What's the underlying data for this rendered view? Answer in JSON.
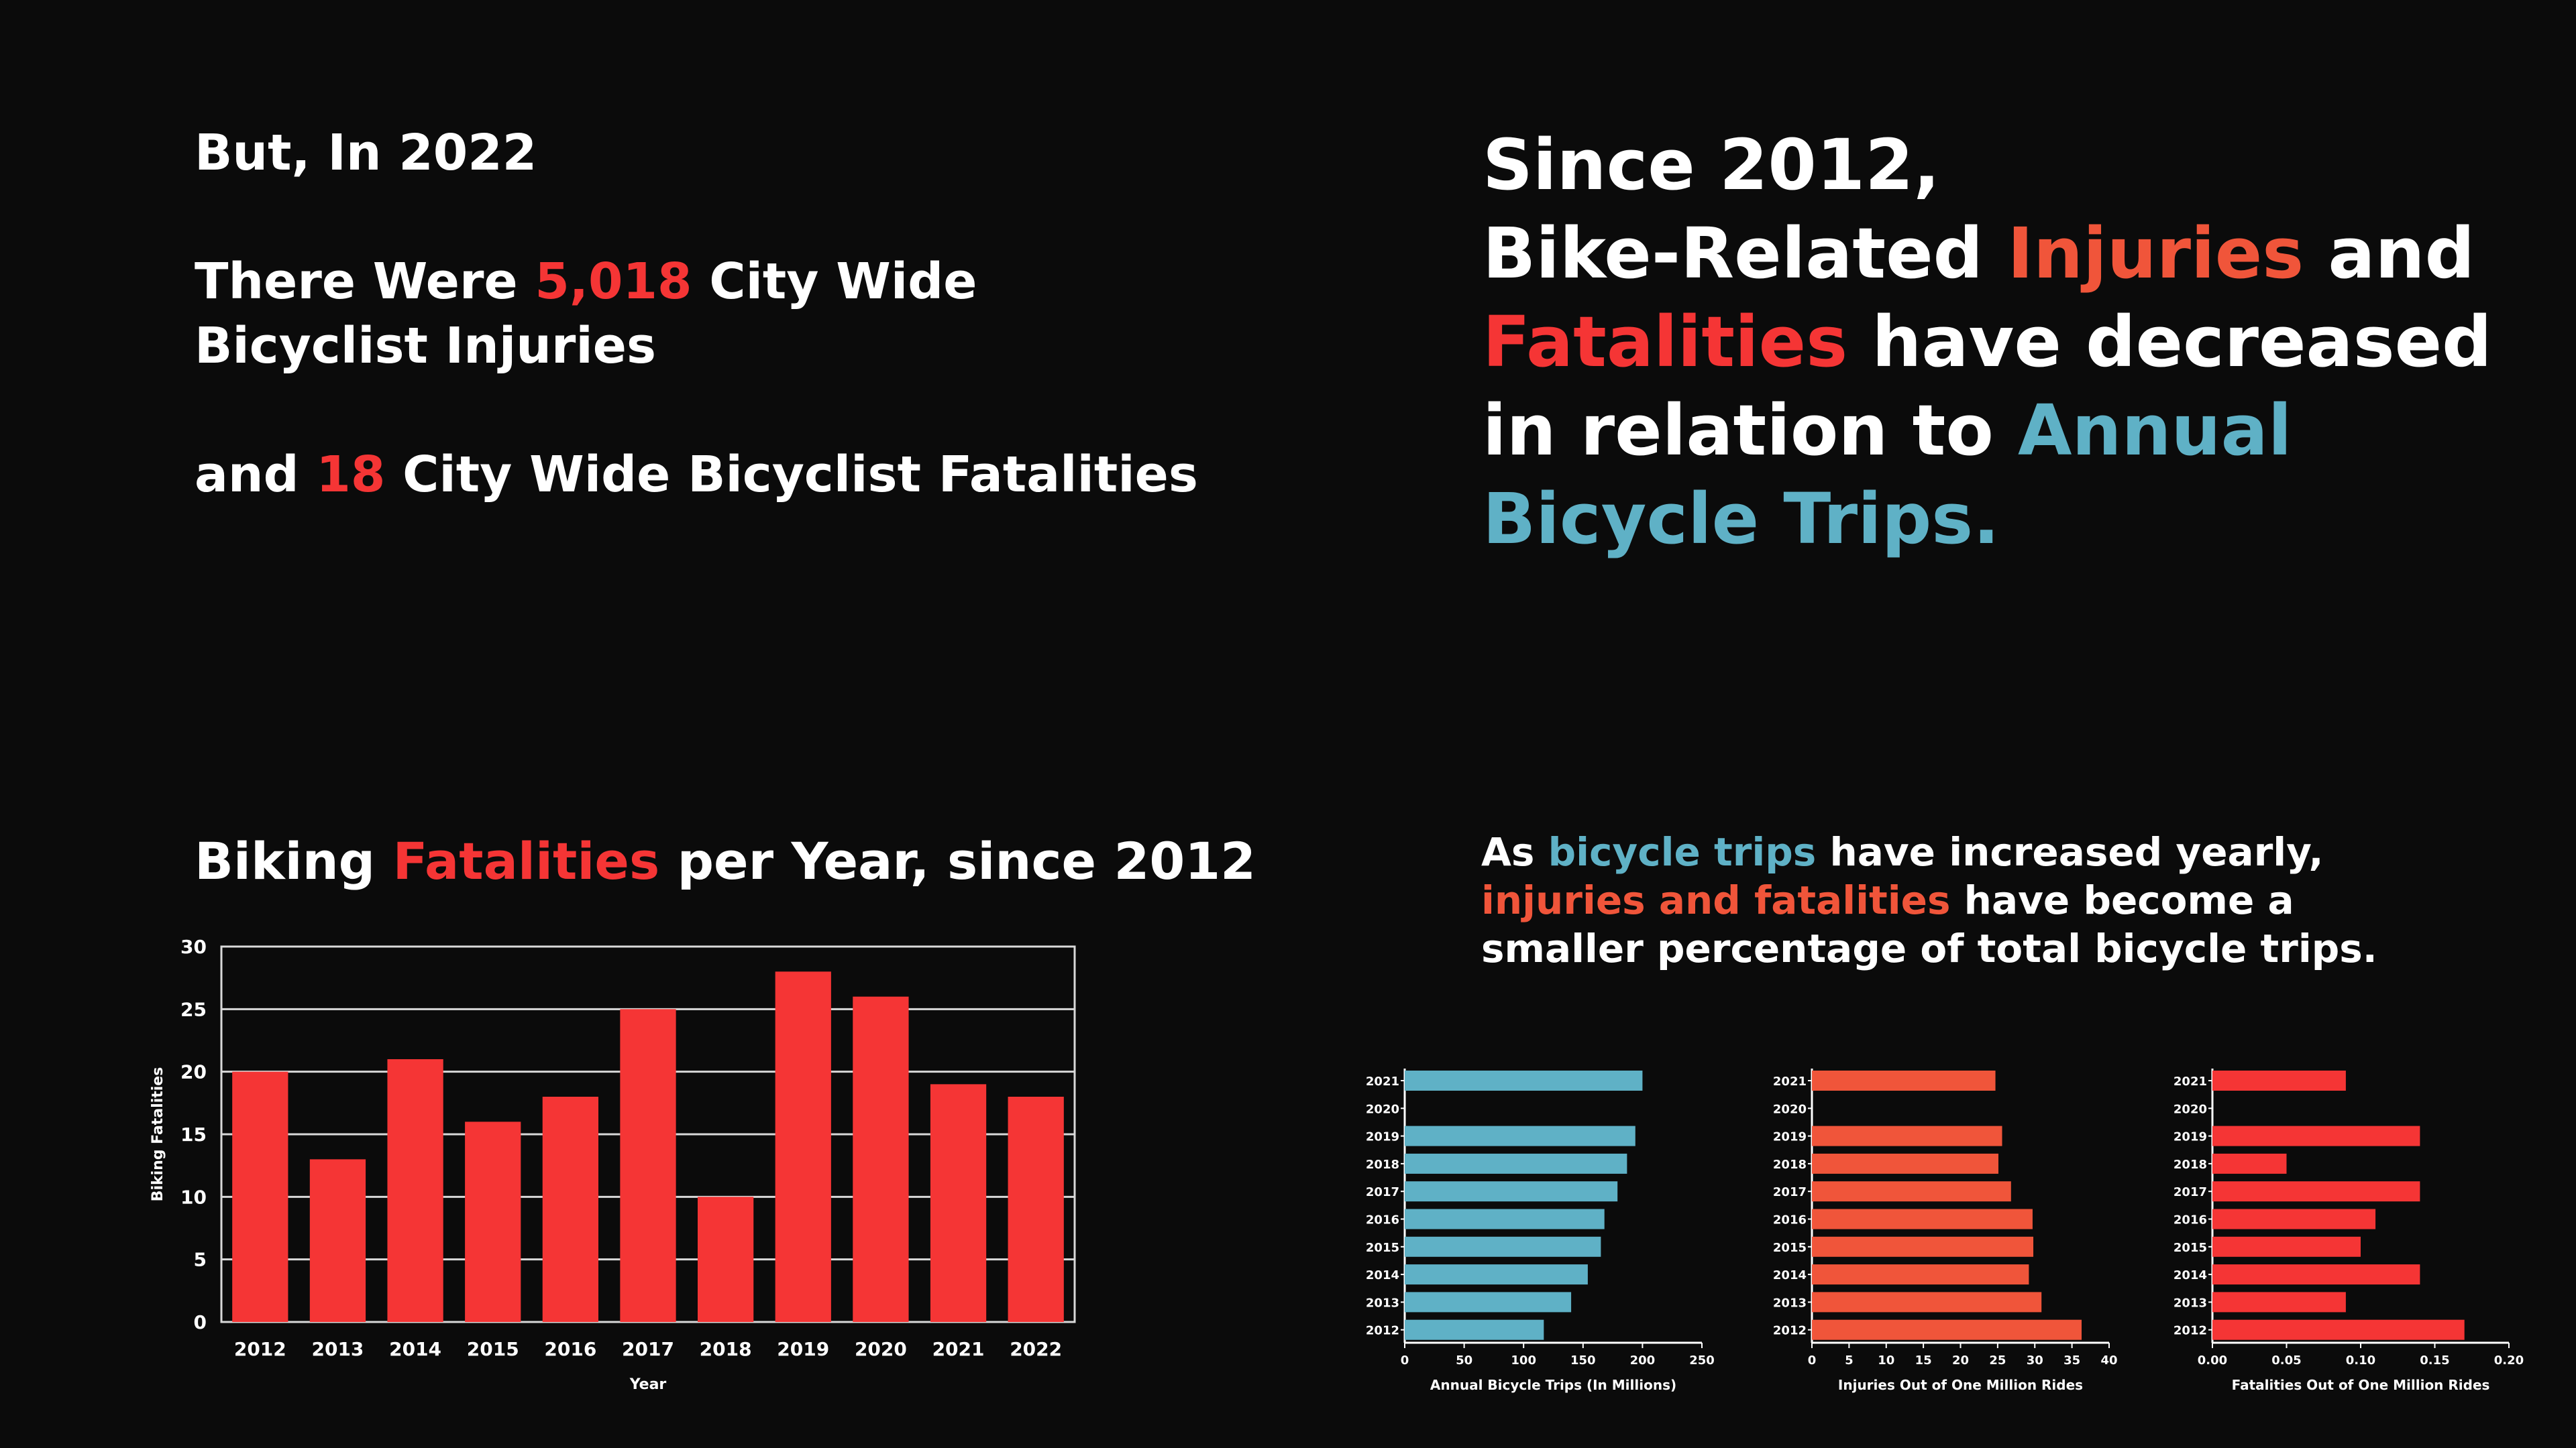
{
  "left_text": {
    "line1": "But, In 2022",
    "inj_pre": "There Were ",
    "inj_num": "5,018",
    "inj_post": " City Wide Bicyclist Injuries",
    "fat_pre": "and ",
    "fat_num": "18",
    "fat_post": " City Wide Bicyclist Fatalities"
  },
  "right_heading": {
    "part1": "Since 2012,",
    "part2": "Bike-Related ",
    "injuries": "Injuries",
    "part3": " and ",
    "fatalities": "Fatalities",
    "part4": " have decreased in relation to ",
    "trips": "Annual Bicycle Trips."
  },
  "bar_title": {
    "pre": "Biking ",
    "highlight": "Fatalities",
    "post": " per Year, since 2012"
  },
  "rates_text": {
    "pre": "As ",
    "trips": "bicycle trips",
    "mid": " have increased yearly, ",
    "injfat": "injuries and fatalities",
    "post": " have become a smaller percentage of total bicycle trips."
  },
  "colors": {
    "red": "#f53535",
    "orange": "#f0553a",
    "blue": "#5fb1c6",
    "background": "#0b0b0b"
  },
  "chart_data": [
    {
      "type": "bar",
      "orientation": "vertical",
      "categories": [
        "2012",
        "2013",
        "2014",
        "2015",
        "2016",
        "2017",
        "2018",
        "2019",
        "2020",
        "2021",
        "2022"
      ],
      "values": [
        20,
        13,
        21,
        16,
        18,
        25,
        10,
        28,
        26,
        19,
        18
      ],
      "xlabel": "Year",
      "ylabel": "Biking Fatalities",
      "ylim": [
        0,
        30
      ],
      "yticks": [
        0,
        5,
        10,
        15,
        20,
        25,
        30
      ],
      "grid": true,
      "color": "#f53535"
    },
    {
      "type": "bar",
      "orientation": "horizontal",
      "categories": [
        "2021",
        "2020",
        "2019",
        "2018",
        "2017",
        "2016",
        "2015",
        "2014",
        "2013",
        "2012"
      ],
      "values": [
        200,
        null,
        194,
        187,
        179,
        168,
        165,
        154,
        140,
        117
      ],
      "xlabel": "Annual Bicycle Trips (In Millions)",
      "xlim": [
        0,
        250
      ],
      "xticks": [
        "0",
        "50",
        "100",
        "150",
        "200",
        "250"
      ],
      "color": "#5fb1c6"
    },
    {
      "type": "bar",
      "orientation": "horizontal",
      "categories": [
        "2021",
        "2020",
        "2019",
        "2018",
        "2017",
        "2016",
        "2015",
        "2014",
        "2013",
        "2012"
      ],
      "values": [
        24.7,
        null,
        25.6,
        25.1,
        26.8,
        29.7,
        29.8,
        29.2,
        30.9,
        36.3
      ],
      "xlabel": "Injuries Out of One Million Rides",
      "xlim": [
        0,
        40
      ],
      "xticks": [
        "0",
        "5",
        "10",
        "15",
        "20",
        "25",
        "30",
        "35",
        "40"
      ],
      "color": "#f0553a"
    },
    {
      "type": "bar",
      "orientation": "horizontal",
      "categories": [
        "2021",
        "2020",
        "2019",
        "2018",
        "2017",
        "2016",
        "2015",
        "2014",
        "2013",
        "2012"
      ],
      "values": [
        0.09,
        null,
        0.14,
        0.05,
        0.14,
        0.11,
        0.1,
        0.14,
        0.09,
        0.17
      ],
      "xlabel": "Fatalities Out of One Million Rides",
      "xlim": [
        0,
        0.2
      ],
      "xticks": [
        "0.00",
        "0.05",
        "0.10",
        "0.15",
        "0.20"
      ],
      "color": "#f53535"
    }
  ]
}
